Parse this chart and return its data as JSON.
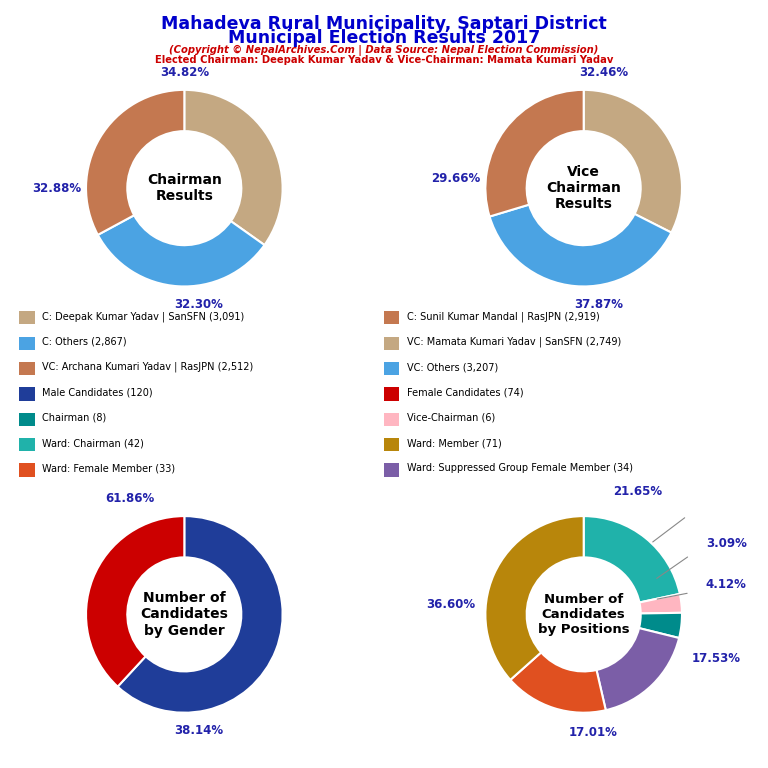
{
  "title_line1": "Mahadeva Rural Municipality, Saptari District",
  "title_line2": "Municipal Election Results 2017",
  "subtitle1": "(Copyright © NepalArchives.Com | Data Source: Nepal Election Commission)",
  "subtitle2": "Elected Chairman: Deepak Kumar Yadav & Vice-Chairman: Mamata Kumari Yadav",
  "chairman_values": [
    34.82,
    32.3,
    32.88
  ],
  "chairman_colors": [
    "#C4A882",
    "#4BA3E3",
    "#C47850"
  ],
  "chairman_label": "Chairman\nResults",
  "chairman_pcts": [
    "34.82%",
    "32.30%",
    "32.88%"
  ],
  "vicechairman_values": [
    32.46,
    37.87,
    29.66
  ],
  "vicechairman_colors": [
    "#C4A882",
    "#4BA3E3",
    "#C47850"
  ],
  "vicechairman_label": "Vice\nChairman\nResults",
  "vicechairman_pcts": [
    "32.46%",
    "37.87%",
    "29.66%"
  ],
  "gender_values": [
    61.86,
    38.14
  ],
  "gender_colors": [
    "#1F3D99",
    "#CC0000"
  ],
  "gender_label": "Number of\nCandidates\nby Gender",
  "gender_pcts": [
    "61.86%",
    "38.14%"
  ],
  "positions_values": [
    21.65,
    3.09,
    4.12,
    17.53,
    17.01,
    36.6
  ],
  "positions_colors": [
    "#20B2AA",
    "#FFB6C1",
    "#008B8B",
    "#7B5EA7",
    "#E05020",
    "#B8860B"
  ],
  "positions_label": "Number of\nCandidates\nby Positions",
  "positions_pcts": [
    "21.65%",
    "3.09%",
    "4.12%",
    "17.53%",
    "17.01%",
    "36.60%"
  ],
  "legend_left": [
    {
      "label": "C: Deepak Kumar Yadav | SanSFN (3,091)",
      "color": "#C4A882"
    },
    {
      "label": "C: Others (2,867)",
      "color": "#4BA3E3"
    },
    {
      "label": "VC: Archana Kumari Yadav | RasJPN (2,512)",
      "color": "#C47850"
    },
    {
      "label": "Male Candidates (120)",
      "color": "#1F3D99"
    },
    {
      "label": "Chairman (8)",
      "color": "#008B8B"
    },
    {
      "label": "Ward: Chairman (42)",
      "color": "#20B2AA"
    },
    {
      "label": "Ward: Female Member (33)",
      "color": "#E05020"
    }
  ],
  "legend_right": [
    {
      "label": "C: Sunil Kumar Mandal | RasJPN (2,919)",
      "color": "#C47850"
    },
    {
      "label": "VC: Mamata Kumari Yadav | SanSFN (2,749)",
      "color": "#C4A882"
    },
    {
      "label": "VC: Others (3,207)",
      "color": "#4BA3E3"
    },
    {
      "label": "Female Candidates (74)",
      "color": "#CC0000"
    },
    {
      "label": "Vice-Chairman (6)",
      "color": "#FFB6C1"
    },
    {
      "label": "Ward: Member (71)",
      "color": "#B8860B"
    },
    {
      "label": "Ward: Suppressed Group Female Member (34)",
      "color": "#7B5EA7"
    }
  ]
}
